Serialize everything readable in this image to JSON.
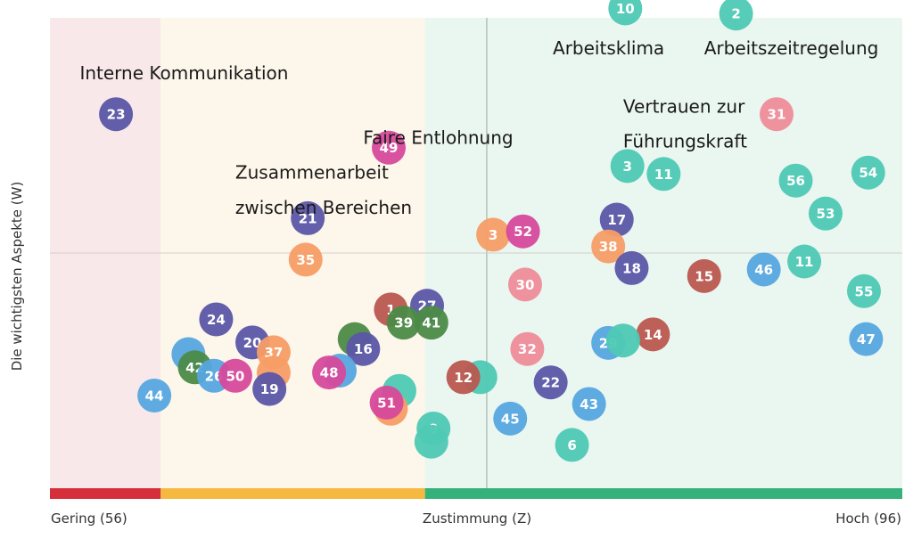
{
  "chart_data": {
    "type": "scatter",
    "title": "",
    "ylabel": "Die wichtigsten Aspekte (W)",
    "xlabel": "Zustimmung (Z)",
    "x_min_label": "Gering (56)",
    "x_max_label": "Hoch (96)",
    "xlim": [
      56,
      96
    ],
    "ylim": [
      0,
      100
    ],
    "zones": [
      {
        "from": 56,
        "to": 61.2,
        "fill": "#f9e8ea",
        "bar": "#d62f3b"
      },
      {
        "from": 61.2,
        "to": 73.6,
        "fill": "#fdf6ea",
        "bar": "#f6b940"
      },
      {
        "from": 73.6,
        "to": 96,
        "fill": "#eaf6f0",
        "bar": "#35b27b"
      }
    ],
    "ref_x": 76.5,
    "ref_y": 50,
    "palette": {
      "teal": "#4ec9b4",
      "purple": "#5b56a6",
      "pink": "#d6499b",
      "orange": "#f79d66",
      "blue": "#56a6e0",
      "green": "#4c8a47",
      "red": "#b9574f",
      "lightpink": "#ee8d99"
    },
    "points": [
      {
        "id": "10",
        "x": 83.0,
        "y": 102.0,
        "color": "teal"
      },
      {
        "id": "2",
        "x": 88.2,
        "y": 100.9,
        "color": "teal"
      },
      {
        "id": "23",
        "x": 59.1,
        "y": 79.5,
        "color": "purple"
      },
      {
        "id": "31",
        "x": 90.1,
        "y": 79.5,
        "color": "lightpink"
      },
      {
        "id": "49",
        "x": 71.9,
        "y": 72.4,
        "color": "pink"
      },
      {
        "id": "3",
        "x": 83.1,
        "y": 68.5,
        "color": "teal"
      },
      {
        "id": "54",
        "x": 94.4,
        "y": 67.1,
        "color": "teal"
      },
      {
        "id": "11",
        "x": 84.8,
        "y": 66.8,
        "color": "teal"
      },
      {
        "id": "56",
        "x": 91.0,
        "y": 65.4,
        "color": "teal"
      },
      {
        "id": "53",
        "x": 92.4,
        "y": 58.4,
        "color": "teal"
      },
      {
        "id": "21",
        "x": 68.1,
        "y": 57.4,
        "color": "purple"
      },
      {
        "id": "17",
        "x": 82.6,
        "y": 57.1,
        "color": "purple"
      },
      {
        "id": "3",
        "x": 76.8,
        "y": 53.9,
        "color": "orange"
      },
      {
        "id": "52",
        "x": 78.2,
        "y": 54.6,
        "color": "pink"
      },
      {
        "id": "38",
        "x": 82.2,
        "y": 51.4,
        "color": "orange"
      },
      {
        "id": "35",
        "x": 68.0,
        "y": 48.6,
        "color": "orange"
      },
      {
        "id": "11",
        "x": 91.4,
        "y": 48.2,
        "color": "teal"
      },
      {
        "id": "18",
        "x": 83.3,
        "y": 46.8,
        "color": "purple"
      },
      {
        "id": "46",
        "x": 89.5,
        "y": 46.5,
        "color": "blue"
      },
      {
        "id": "15",
        "x": 86.7,
        "y": 45.1,
        "color": "red"
      },
      {
        "id": "30",
        "x": 78.3,
        "y": 43.3,
        "color": "lightpink"
      },
      {
        "id": "55",
        "x": 94.2,
        "y": 41.9,
        "color": "teal"
      },
      {
        "id": "1",
        "x": 72.0,
        "y": 38.0,
        "color": "red"
      },
      {
        "id": "27",
        "x": 73.7,
        "y": 38.8,
        "color": "purple"
      },
      {
        "id": "24",
        "x": 63.8,
        "y": 35.9,
        "color": "purple"
      },
      {
        "id": "39",
        "x": 72.6,
        "y": 35.2,
        "color": "green"
      },
      {
        "id": "41",
        "x": 73.9,
        "y": 35.2,
        "color": "green"
      },
      {
        "id": "20",
        "x": 65.5,
        "y": 31.0,
        "color": "purple"
      },
      {
        "id": "37",
        "x": 66.5,
        "y": 28.9,
        "color": "orange"
      },
      {
        "id": "",
        "x": 70.3,
        "y": 31.7,
        "color": "green"
      },
      {
        "id": "16",
        "x": 70.7,
        "y": 29.6,
        "color": "purple"
      },
      {
        "id": "14",
        "x": 84.3,
        "y": 32.7,
        "color": "red"
      },
      {
        "id": "29",
        "x": 82.2,
        "y": 30.9,
        "color": "blue"
      },
      {
        "id": "",
        "x": 82.9,
        "y": 31.4,
        "color": "teal"
      },
      {
        "id": "32",
        "x": 78.4,
        "y": 29.6,
        "color": "lightpink"
      },
      {
        "id": "47",
        "x": 94.3,
        "y": 31.7,
        "color": "blue"
      },
      {
        "id": "",
        "x": 62.5,
        "y": 28.5,
        "color": "blue"
      },
      {
        "id": "42",
        "x": 62.8,
        "y": 25.7,
        "color": "green"
      },
      {
        "id": "",
        "x": 66.5,
        "y": 24.6,
        "color": "orange"
      },
      {
        "id": "",
        "x": 69.6,
        "y": 25.0,
        "color": "blue"
      },
      {
        "id": "48",
        "x": 69.1,
        "y": 24.6,
        "color": "pink"
      },
      {
        "id": "26",
        "x": 63.7,
        "y": 23.9,
        "color": "blue"
      },
      {
        "id": "50",
        "x": 64.7,
        "y": 23.9,
        "color": "pink"
      },
      {
        "id": "19",
        "x": 66.3,
        "y": 21.1,
        "color": "purple"
      },
      {
        "id": "",
        "x": 76.2,
        "y": 23.6,
        "color": "teal"
      },
      {
        "id": "12",
        "x": 75.4,
        "y": 23.6,
        "color": "red"
      },
      {
        "id": "22",
        "x": 79.5,
        "y": 22.5,
        "color": "purple"
      },
      {
        "id": "",
        "x": 72.4,
        "y": 20.7,
        "color": "teal"
      },
      {
        "id": "44",
        "x": 60.9,
        "y": 19.7,
        "color": "blue"
      },
      {
        "id": "",
        "x": 72.0,
        "y": 16.9,
        "color": "orange"
      },
      {
        "id": "51",
        "x": 71.8,
        "y": 18.2,
        "color": "pink"
      },
      {
        "id": "43",
        "x": 81.3,
        "y": 17.9,
        "color": "blue"
      },
      {
        "id": "45",
        "x": 77.6,
        "y": 14.8,
        "color": "blue"
      },
      {
        "id": "9",
        "x": 74.0,
        "y": 12.7,
        "color": "teal"
      },
      {
        "id": "",
        "x": 73.9,
        "y": 9.9,
        "color": "teal"
      },
      {
        "id": "6",
        "x": 80.5,
        "y": 9.2,
        "color": "teal"
      }
    ],
    "annotations": [
      {
        "text": "Arbeitsklima",
        "x": 79.6,
        "y": 93.6
      },
      {
        "text": "Arbeitszeitregelung",
        "x": 86.7,
        "y": 93.6
      },
      {
        "text": "Interne Kommunikation",
        "x": 57.4,
        "y": 88.3
      },
      {
        "text": "Vertrauen zur",
        "x": 82.9,
        "y": 81.2
      },
      {
        "text": "Führungskraft",
        "x": 82.9,
        "y": 73.8
      },
      {
        "text": "Faire Entlohnung",
        "x": 70.7,
        "y": 74.5
      },
      {
        "text": "Zusammenarbeit",
        "x": 64.7,
        "y": 67.1
      },
      {
        "text": "zwischen Bereichen",
        "x": 64.7,
        "y": 59.7
      }
    ]
  }
}
